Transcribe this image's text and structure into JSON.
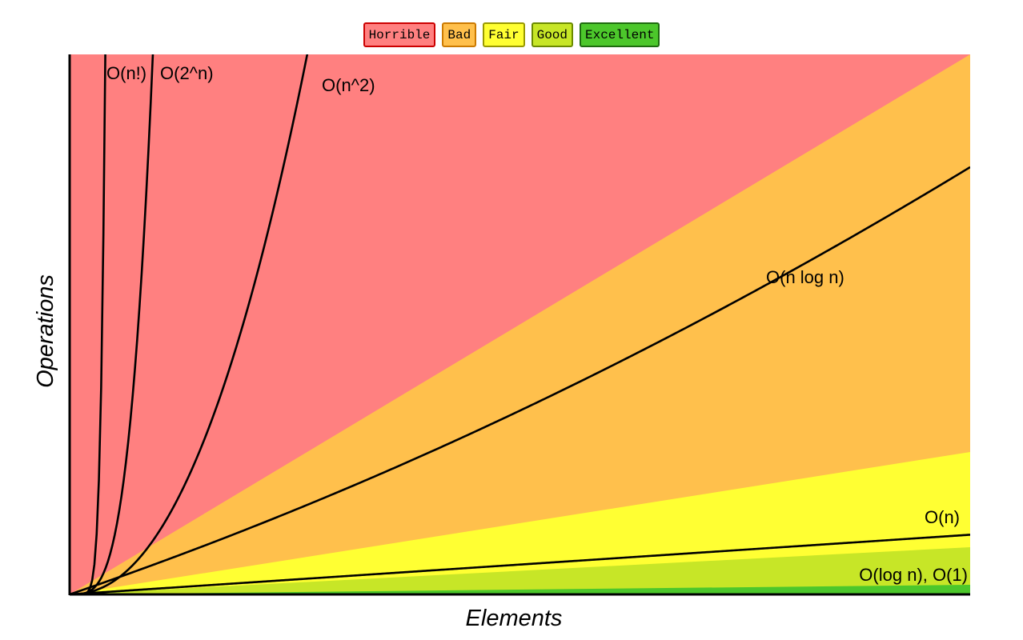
{
  "legend": [
    {
      "label": "Horrible",
      "fill": "#ff8080",
      "border": "#cc0000"
    },
    {
      "label": "Bad",
      "fill": "#ffc04c",
      "border": "#cc7a00"
    },
    {
      "label": "Fair",
      "fill": "#ffff33",
      "border": "#999900"
    },
    {
      "label": "Good",
      "fill": "#c7e627",
      "border": "#6b8a00"
    },
    {
      "label": "Excellent",
      "fill": "#4cc72b",
      "border": "#1e6b0f"
    }
  ],
  "chart_data": {
    "type": "area",
    "xlabel": "Elements",
    "ylabel": "Operations",
    "x_max": 1,
    "y_max": 1,
    "regions": [
      {
        "rating": "Horrible",
        "color": "#ff8080",
        "top_slope": 1000000000.0
      },
      {
        "rating": "Bad",
        "color": "#ffc04c",
        "top_slope": 1.0
      },
      {
        "rating": "Fair",
        "color": "#ffff33",
        "top_slope": 0.26
      },
      {
        "rating": "Good",
        "color": "#c7e627",
        "top_slope": 0.087
      },
      {
        "rating": "Excellent",
        "color": "#4cc72b",
        "top_slope": 0.018
      }
    ],
    "curves": [
      {
        "name": "O(n!)",
        "label": "O(n!)"
      },
      {
        "name": "O(2^n)",
        "label": "O(2^n)"
      },
      {
        "name": "O(n^2)",
        "label": "O(n^2)"
      },
      {
        "name": "O(n log n)",
        "label": "O(n log n)"
      },
      {
        "name": "O(n)",
        "label": "O(n)"
      },
      {
        "name": "O(log n), O(1)",
        "label": "O(log n), O(1)"
      }
    ]
  }
}
